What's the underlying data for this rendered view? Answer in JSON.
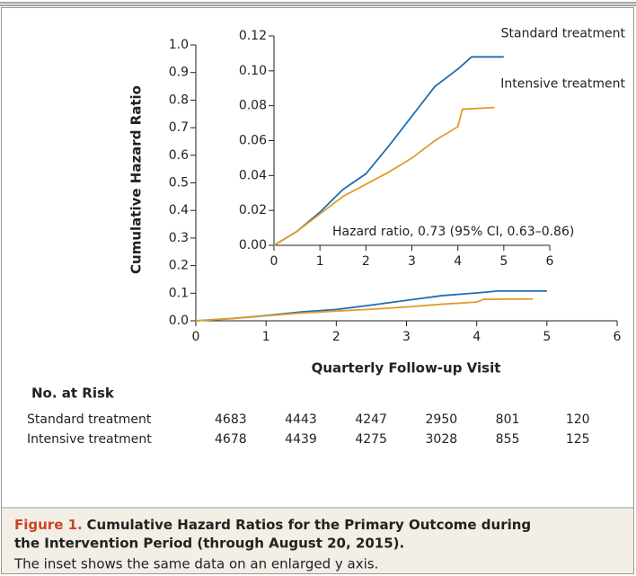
{
  "chart_data": [
    {
      "type": "line",
      "ylabel": "Cumulative Hazard Ratio",
      "xlabel": "Quarterly Follow-up Visit",
      "xlim": [
        0,
        6
      ],
      "xticks": [
        0,
        1,
        2,
        3,
        4,
        5,
        6
      ],
      "ylim": [
        0,
        1
      ],
      "yticks": [
        {
          "value": 0,
          "label": "0.0"
        },
        0.1,
        0.2,
        0.3,
        0.4,
        0.5,
        0.6,
        0.7,
        0.8,
        0.9,
        {
          "value": 1,
          "label": "1.0"
        }
      ],
      "series": [
        {
          "color": "#1f6fb0",
          "x": [
            0,
            0.5,
            1,
            1.5,
            2,
            2.5,
            3,
            3.5,
            4,
            4.3,
            5
          ],
          "values": [
            0,
            0.008,
            0.019,
            0.032,
            0.041,
            0.057,
            0.074,
            0.091,
            0.101,
            0.108,
            0.108
          ]
        },
        {
          "color": "#e39b2b",
          "x": [
            0,
            0.5,
            1,
            1.5,
            2,
            2.5,
            3,
            3.5,
            4,
            4.1,
            4.8
          ],
          "values": [
            0,
            0.008,
            0.018,
            0.028,
            0.035,
            0.042,
            0.05,
            0.06,
            0.068,
            0.078,
            0.079
          ]
        }
      ]
    },
    {
      "type": "line",
      "annotation": "Hazard ratio, 0.73 (95% CI, 0.63–0.86)",
      "xlim": [
        0,
        6
      ],
      "xticks": [
        0,
        1,
        2,
        3,
        4,
        5,
        6
      ],
      "ylim": [
        0,
        0.12
      ],
      "yticks": [
        {
          "value": 0,
          "label": "0.00"
        },
        0.02,
        0.04,
        0.06,
        0.08,
        {
          "value": 0.1,
          "label": "0.10"
        },
        0.12
      ],
      "series": [
        {
          "name": "Standard treatment",
          "color": "#1f6fb0",
          "x": [
            0,
            0.5,
            1,
            1.5,
            2,
            2.5,
            3,
            3.5,
            4,
            4.3,
            5
          ],
          "values": [
            0,
            0.008,
            0.019,
            0.032,
            0.041,
            0.057,
            0.074,
            0.091,
            0.101,
            0.108,
            0.108
          ]
        },
        {
          "name": "Intensive treatment",
          "color": "#e39b2b",
          "x": [
            0,
            0.5,
            1,
            1.5,
            2,
            2.5,
            3,
            3.5,
            4,
            4.1,
            4.8
          ],
          "values": [
            0,
            0.008,
            0.018,
            0.028,
            0.035,
            0.042,
            0.05,
            0.06,
            0.068,
            0.078,
            0.079
          ]
        }
      ]
    }
  ],
  "at_risk": {
    "title": "No. at Risk",
    "rows": [
      {
        "label": "Standard treatment",
        "values": [
          4683,
          4443,
          4247,
          2950,
          801,
          120
        ]
      },
      {
        "label": "Intensive treatment",
        "values": [
          4678,
          4439,
          4275,
          3028,
          855,
          125
        ]
      }
    ]
  },
  "caption": {
    "label": "Figure 1.",
    "title": "Cumulative Hazard Ratios for the Primary Outcome during",
    "title2": "the Intervention Period (through August 20, 2015).",
    "text": "The inset shows the same data on an enlarged y axis."
  }
}
